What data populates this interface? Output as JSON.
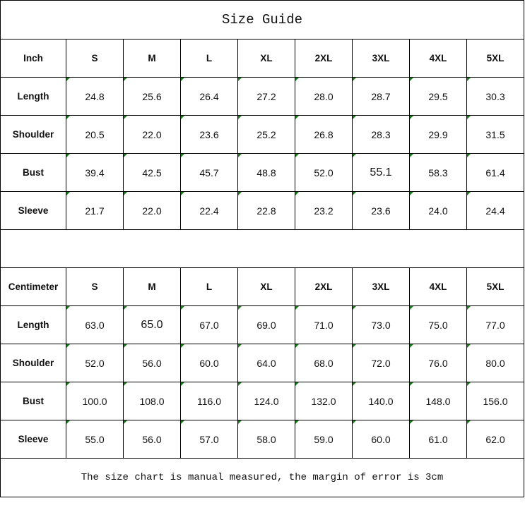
{
  "title": "Size Guide",
  "sizes": [
    "S",
    "M",
    "L",
    "XL",
    "2XL",
    "3XL",
    "4XL",
    "5XL"
  ],
  "tables": [
    {
      "unit": "Inch",
      "rows": [
        {
          "label": "Length",
          "values": [
            "24.8",
            "25.6",
            "26.4",
            "27.2",
            "28.0",
            "28.7",
            "29.5",
            "30.3"
          ]
        },
        {
          "label": "Shoulder",
          "values": [
            "20.5",
            "22.0",
            "23.6",
            "25.2",
            "26.8",
            "28.3",
            "29.9",
            "31.5"
          ]
        },
        {
          "label": "Bust",
          "values": [
            "39.4",
            "42.5",
            "45.7",
            "48.8",
            "52.0",
            "55.1",
            "58.3",
            "61.4"
          ]
        },
        {
          "label": "Sleeve",
          "values": [
            "21.7",
            "22.0",
            "22.4",
            "22.8",
            "23.2",
            "23.6",
            "24.0",
            "24.4"
          ]
        }
      ]
    },
    {
      "unit": "Centimeter",
      "rows": [
        {
          "label": "Length",
          "values": [
            "63.0",
            "65.0",
            "67.0",
            "69.0",
            "71.0",
            "73.0",
            "75.0",
            "77.0"
          ]
        },
        {
          "label": "Shoulder",
          "values": [
            "52.0",
            "56.0",
            "60.0",
            "64.0",
            "68.0",
            "72.0",
            "76.0",
            "80.0"
          ]
        },
        {
          "label": "Bust",
          "values": [
            "100.0",
            "108.0",
            "116.0",
            "124.0",
            "132.0",
            "140.0",
            "148.0",
            "156.0"
          ]
        },
        {
          "label": "Sleeve",
          "values": [
            "55.0",
            "56.0",
            "57.0",
            "58.0",
            "59.0",
            "60.0",
            "61.0",
            "62.0"
          ]
        }
      ]
    }
  ],
  "note": "The size chart is manual measured, the margin of error is 3cm",
  "colors": {
    "border": "#000000",
    "error_marker": "#1a7a1a"
  }
}
